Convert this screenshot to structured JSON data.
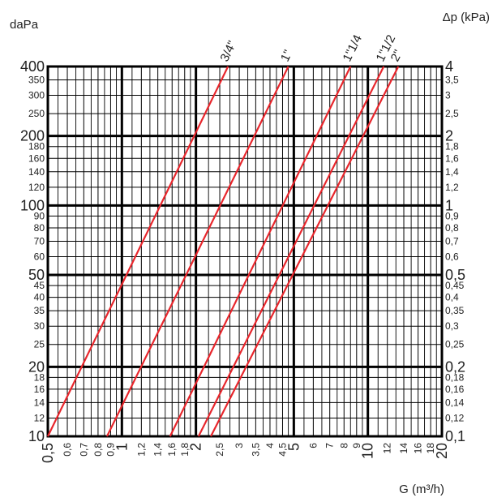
{
  "chart_data": {
    "type": "line",
    "xscale": "log",
    "yscale": "log",
    "xlim": [
      0.5,
      20
    ],
    "ylim": [
      10,
      400
    ],
    "left_unit": "daPa",
    "right_unit": "Δp (kPa)",
    "xlabel": "G (m³/h)",
    "x_tick_labels": [
      {
        "v": 0.5,
        "t": "0,5",
        "major": true
      },
      {
        "v": 0.6,
        "t": "0,6"
      },
      {
        "v": 0.7,
        "t": "0,7"
      },
      {
        "v": 0.8,
        "t": "0,8"
      },
      {
        "v": 0.9,
        "t": "0,9"
      },
      {
        "v": 1,
        "t": "1",
        "major": true
      },
      {
        "v": 1.2,
        "t": "1,2"
      },
      {
        "v": 1.4,
        "t": "1,4"
      },
      {
        "v": 1.6,
        "t": "1,6"
      },
      {
        "v": 1.8,
        "t": "1,8"
      },
      {
        "v": 2,
        "t": "2",
        "major": true
      },
      {
        "v": 2.5,
        "t": "2,5"
      },
      {
        "v": 3,
        "t": "3"
      },
      {
        "v": 3.5,
        "t": "3,5"
      },
      {
        "v": 4,
        "t": "4"
      },
      {
        "v": 4.5,
        "t": "4,5"
      },
      {
        "v": 5,
        "t": "5",
        "major": true
      },
      {
        "v": 6,
        "t": "6"
      },
      {
        "v": 7,
        "t": "7"
      },
      {
        "v": 8,
        "t": "8"
      },
      {
        "v": 9,
        "t": "9"
      },
      {
        "v": 10,
        "t": "10",
        "major": true
      },
      {
        "v": 12,
        "t": "12"
      },
      {
        "v": 14,
        "t": "14"
      },
      {
        "v": 16,
        "t": "16"
      },
      {
        "v": 18,
        "t": "18"
      },
      {
        "v": 20,
        "t": "20",
        "major": true
      }
    ],
    "x_minor_gridlines": [
      0.55,
      0.65,
      0.75,
      0.85,
      0.95,
      1.1,
      1.3,
      1.5,
      1.7,
      1.9,
      2.25,
      2.75,
      3.25,
      3.75,
      4.25,
      4.75,
      5.5,
      6.5,
      7.5,
      8.5,
      9.5,
      11,
      13,
      15,
      17,
      19
    ],
    "y_major_gridlines": [
      20,
      50,
      100,
      200
    ],
    "y_ticks": [
      {
        "v": 10,
        "l": "10",
        "r": "0,1",
        "major": true
      },
      {
        "v": 12,
        "l": "12",
        "r": "0,12"
      },
      {
        "v": 14,
        "l": "14",
        "r": "0,14"
      },
      {
        "v": 16,
        "l": "16",
        "r": "0,16"
      },
      {
        "v": 18,
        "l": "18",
        "r": "0,18"
      },
      {
        "v": 20,
        "l": "20",
        "r": "0,2",
        "major": true
      },
      {
        "v": 25,
        "l": "25",
        "r": "0,25"
      },
      {
        "v": 30,
        "l": "30",
        "r": "0,3"
      },
      {
        "v": 35,
        "l": "35",
        "r": "0,35"
      },
      {
        "v": 40,
        "l": "40",
        "r": "0,4"
      },
      {
        "v": 45,
        "l": "45",
        "r": "0,45"
      },
      {
        "v": 50,
        "l": "50",
        "r": "0,5",
        "major": true
      },
      {
        "v": 60,
        "l": "60",
        "r": "0,6"
      },
      {
        "v": 70,
        "l": "70",
        "r": "0,7"
      },
      {
        "v": 80,
        "l": "80",
        "r": "0,8"
      },
      {
        "v": 90,
        "l": "90",
        "r": "0,9"
      },
      {
        "v": 100,
        "l": "100",
        "r": "1",
        "major": true
      },
      {
        "v": 120,
        "l": "120",
        "r": "1,2"
      },
      {
        "v": 140,
        "l": "140",
        "r": "1,4"
      },
      {
        "v": 160,
        "l": "160",
        "r": "1,6"
      },
      {
        "v": 180,
        "l": "180",
        "r": "1,8"
      },
      {
        "v": 200,
        "l": "200",
        "r": "2",
        "major": true
      },
      {
        "v": 250,
        "l": "250",
        "r": "2,5"
      },
      {
        "v": 300,
        "l": "300",
        "r": "3"
      },
      {
        "v": 350,
        "l": "350",
        "r": "3,5"
      },
      {
        "v": 400,
        "l": "400",
        "r": "4",
        "major": true
      }
    ],
    "line_color": "#e8262c",
    "grid_color": "#000000",
    "series": [
      {
        "name": "3/4\"",
        "x": [
          0.5,
          2.7
        ],
        "y": [
          10,
          400
        ]
      },
      {
        "name": "1\"",
        "x": [
          0.87,
          4.75
        ],
        "y": [
          10,
          400
        ]
      },
      {
        "name": "1\"1/4",
        "x": [
          1.57,
          8.5
        ],
        "y": [
          10,
          400
        ]
      },
      {
        "name": "1\"1/2",
        "x": [
          2.05,
          11.6
        ],
        "y": [
          10,
          400
        ]
      },
      {
        "name": "2\"",
        "x": [
          2.3,
          13.3
        ],
        "y": [
          10,
          400
        ]
      }
    ]
  }
}
